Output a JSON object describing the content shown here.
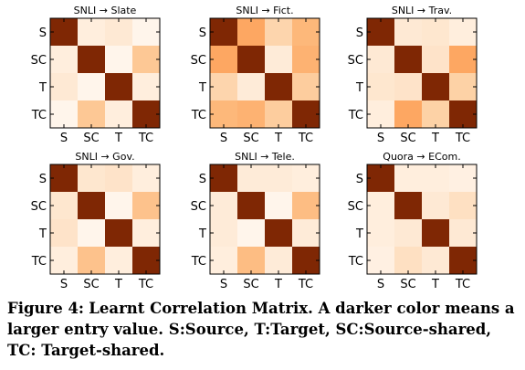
{
  "figure": {
    "label": "Figure 4:",
    "caption": "Learnt Correlation Matrix. A darker color means a larger entry value. S:Source, T:Target, SC:Source-shared, TC: Target-shared."
  },
  "chart_data": [
    {
      "type": "heatmap",
      "title": "SNLI → Slate",
      "rows": [
        "S",
        "SC",
        "T",
        "TC"
      ],
      "cols": [
        "S",
        "SC",
        "T",
        "TC"
      ],
      "values": [
        [
          1.0,
          0.06,
          0.1,
          0.0
        ],
        [
          0.06,
          1.0,
          0.0,
          0.28
        ],
        [
          0.1,
          0.0,
          1.0,
          0.06
        ],
        [
          0.0,
          0.28,
          0.06,
          1.0
        ]
      ],
      "color_scale": "Oranges"
    },
    {
      "type": "heatmap",
      "title": "SNLI → Fict.",
      "rows": [
        "S",
        "SC",
        "T",
        "TC"
      ],
      "cols": [
        "S",
        "SC",
        "T",
        "TC"
      ],
      "values": [
        [
          1.0,
          0.4,
          0.22,
          0.34
        ],
        [
          0.4,
          1.0,
          0.08,
          0.36
        ],
        [
          0.22,
          0.08,
          1.0,
          0.26
        ],
        [
          0.34,
          0.36,
          0.26,
          1.0
        ]
      ],
      "color_scale": "Oranges"
    },
    {
      "type": "heatmap",
      "title": "SNLI → Trav.",
      "rows": [
        "S",
        "SC",
        "T",
        "TC"
      ],
      "cols": [
        "S",
        "SC",
        "T",
        "TC"
      ],
      "values": [
        [
          1.0,
          0.1,
          0.12,
          0.06
        ],
        [
          0.1,
          1.0,
          0.14,
          0.4
        ],
        [
          0.12,
          0.14,
          1.0,
          0.24
        ],
        [
          0.06,
          0.4,
          0.24,
          1.0
        ]
      ],
      "color_scale": "Oranges"
    },
    {
      "type": "heatmap",
      "title": "SNLI → Gov.",
      "rows": [
        "S",
        "SC",
        "T",
        "TC"
      ],
      "cols": [
        "S",
        "SC",
        "T",
        "TC"
      ],
      "values": [
        [
          1.0,
          0.12,
          0.14,
          0.06
        ],
        [
          0.12,
          1.0,
          0.0,
          0.3
        ],
        [
          0.14,
          0.0,
          1.0,
          0.06
        ],
        [
          0.06,
          0.3,
          0.06,
          1.0
        ]
      ],
      "color_scale": "Oranges"
    },
    {
      "type": "heatmap",
      "title": "SNLI → Tele.",
      "rows": [
        "S",
        "SC",
        "T",
        "TC"
      ],
      "cols": [
        "S",
        "SC",
        "T",
        "TC"
      ],
      "values": [
        [
          1.0,
          0.08,
          0.08,
          0.06
        ],
        [
          0.08,
          1.0,
          0.0,
          0.32
        ],
        [
          0.08,
          0.0,
          1.0,
          0.08
        ],
        [
          0.06,
          0.32,
          0.08,
          1.0
        ]
      ],
      "color_scale": "Oranges"
    },
    {
      "type": "heatmap",
      "title": "Quora → ECom.",
      "rows": [
        "S",
        "SC",
        "T",
        "TC"
      ],
      "cols": [
        "S",
        "SC",
        "T",
        "TC"
      ],
      "values": [
        [
          1.0,
          0.06,
          0.06,
          0.04
        ],
        [
          0.06,
          1.0,
          0.1,
          0.16
        ],
        [
          0.06,
          0.1,
          1.0,
          0.1
        ],
        [
          0.04,
          0.16,
          0.1,
          1.0
        ]
      ],
      "color_scale": "Oranges"
    }
  ]
}
